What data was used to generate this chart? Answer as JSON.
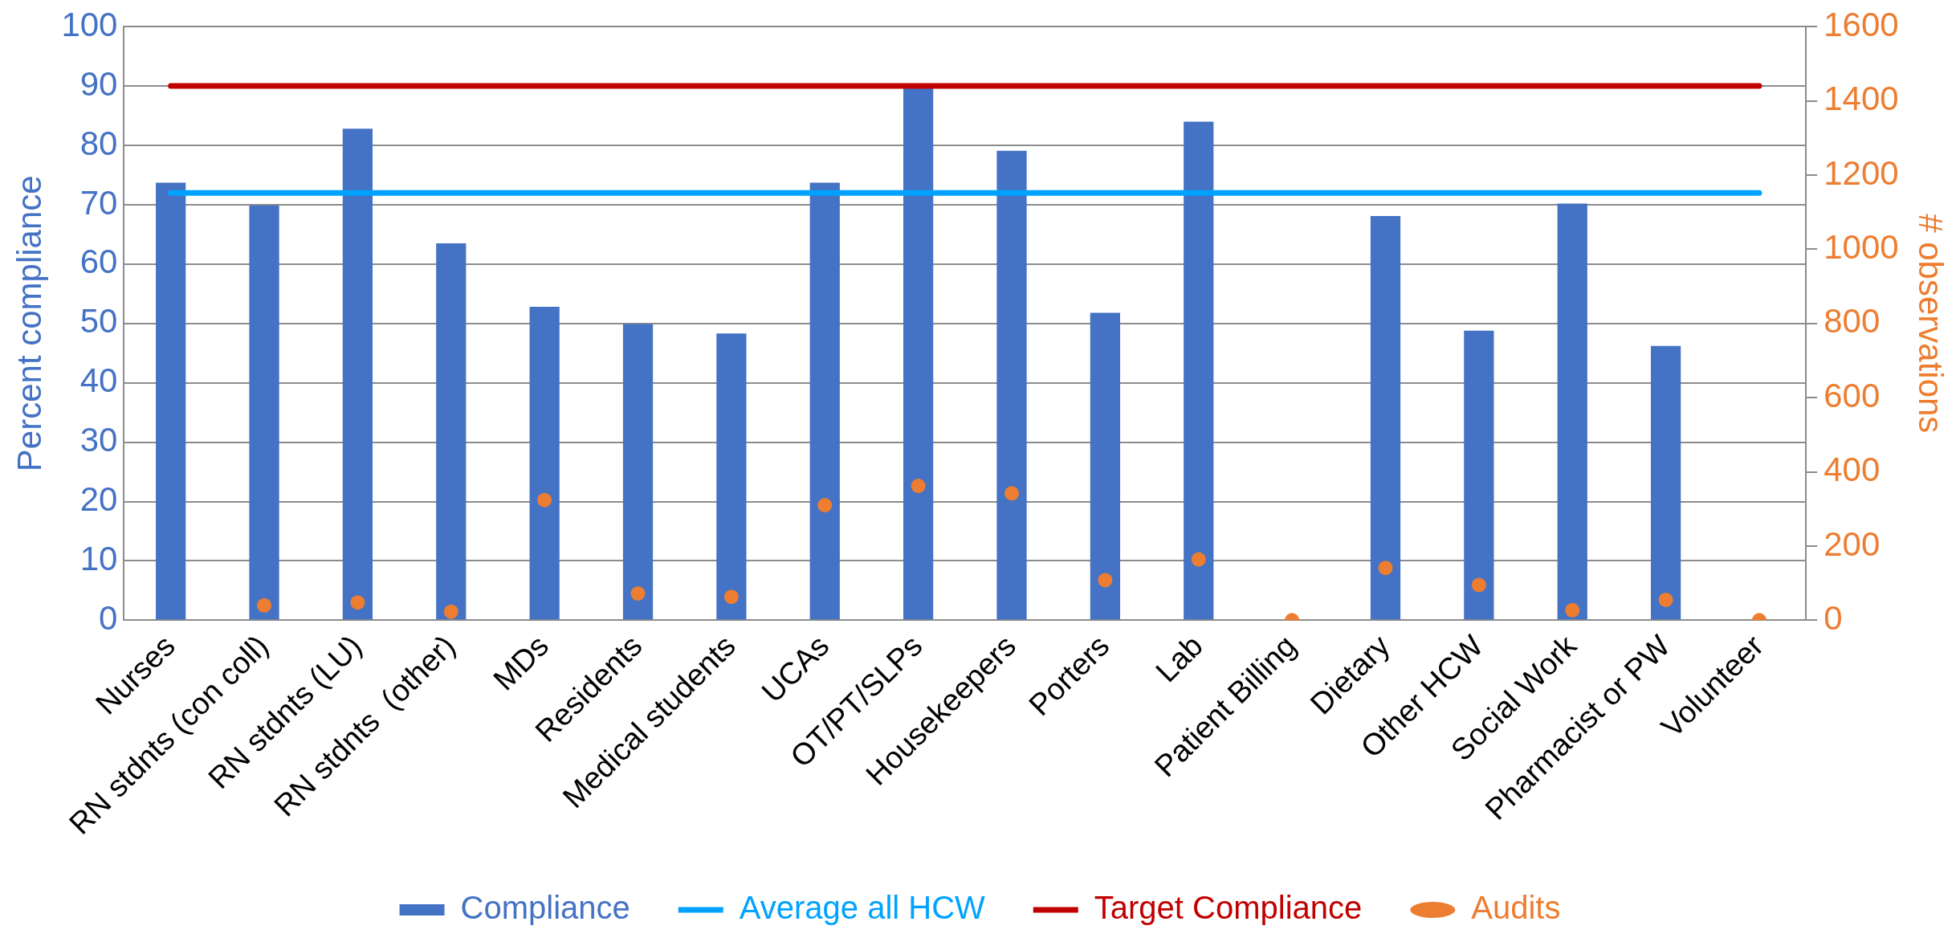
{
  "chart_data": {
    "type": "bar",
    "ylabel": "Percent compliance",
    "y2label": "# observations",
    "categories": [
      "Nurses",
      "RN stdnts (con coll)",
      "RN stdnts (LU)",
      "RN stdnts  (other)",
      "MDs",
      "Residents",
      "Medical students",
      "UCAs",
      "OT/PT/SLPs",
      "Housekeepers",
      "Porters",
      "Lab",
      "Patient Billing",
      "Dietary",
      "Other HCW",
      "Social Work",
      "Pharmacist or PW",
      "Volunteer"
    ],
    "series": [
      {
        "name": "Compliance",
        "color": "#4472c4",
        "values": [
          73.7,
          69.9,
          82.8,
          63.5,
          52.8,
          49.9,
          48.3,
          73.7,
          89.6,
          79.1,
          51.8,
          84.0,
          null,
          68.1,
          48.8,
          70.2,
          46.2,
          null
        ]
      },
      {
        "name": "Average all HCW",
        "type": "line",
        "marker": "none",
        "color": "#00a2ff",
        "values": [
          72,
          72,
          72,
          72,
          72,
          72,
          72,
          72,
          72,
          72,
          72,
          72,
          72,
          72,
          72,
          72,
          72,
          72
        ]
      },
      {
        "name": "Target Compliance",
        "type": "line",
        "marker": "none",
        "color": "#c00000",
        "values": [
          90,
          90,
          90,
          90,
          90,
          90,
          90,
          90,
          90,
          90,
          90,
          90,
          90,
          90,
          90,
          90,
          90,
          90
        ]
      },
      {
        "name": "Audits",
        "type": "scatter",
        "marker": "circle",
        "axis": "y2",
        "color": "#ed7d31",
        "values": [
          null,
          40,
          48,
          23,
          324,
          72,
          63,
          310,
          362,
          342,
          108,
          164,
          0,
          141,
          95,
          27,
          55,
          0
        ]
      }
    ],
    "ylim": [
      0,
      100
    ],
    "yticks": [
      0,
      10,
      20,
      30,
      40,
      50,
      60,
      70,
      80,
      90,
      100
    ],
    "y2lim": [
      0,
      1600
    ],
    "y2ticks": [
      0,
      200,
      400,
      600,
      800,
      1000,
      1200,
      1400,
      1600
    ],
    "grid": "y",
    "legend": "bottom",
    "line_style": "solid"
  }
}
